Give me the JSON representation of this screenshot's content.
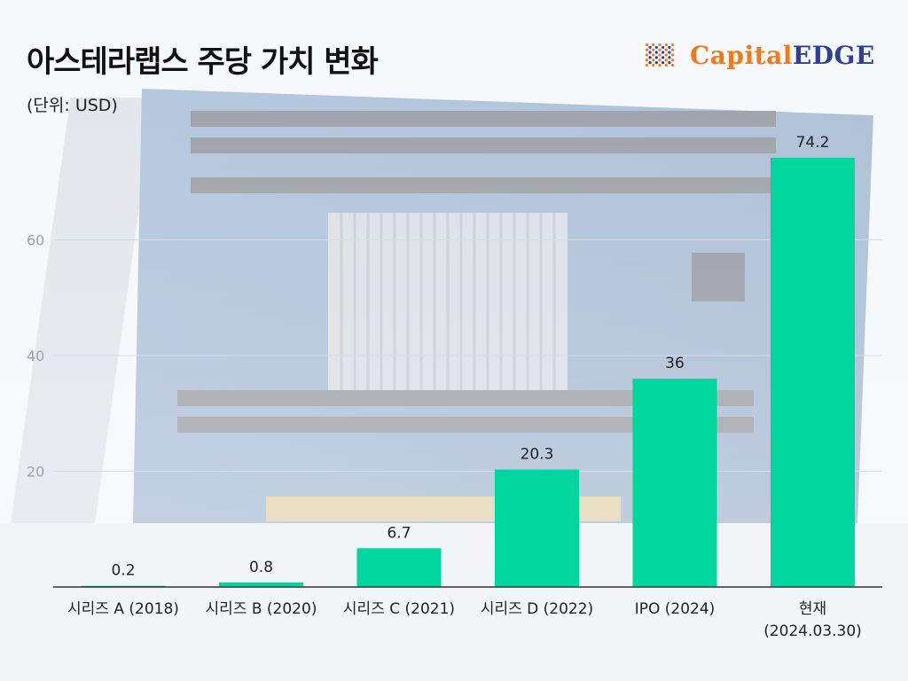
{
  "header": {
    "title": "아스테라랩스 주당 가치 변화",
    "unit": "(단위: USD)"
  },
  "logo": {
    "part1": "Capital",
    "part2": "EDGE",
    "colors": {
      "primary": "#f07a1a",
      "secondary": "#2d3f9a"
    }
  },
  "colors": {
    "bar": "#00d69e",
    "axis": "#333333",
    "grid": "#d6dde6",
    "tick": "#9aa3ad"
  },
  "chart_data": {
    "type": "bar",
    "title": "아스테라랩스 주당 가치 변화",
    "ylabel": "(단위: USD)",
    "xlabel": "",
    "categories": [
      [
        "시리즈 A (2018)"
      ],
      [
        "시리즈 B (2020)"
      ],
      [
        "시리즈 C (2021)"
      ],
      [
        "시리즈 D (2022)"
      ],
      [
        "IPO (2024)"
      ],
      [
        "현재",
        "(2024.03.30)"
      ]
    ],
    "values": [
      0.2,
      0.8,
      6.7,
      20.3,
      36,
      74.2
    ],
    "value_labels": [
      "0.2",
      "0.8",
      "6.7",
      "20.3",
      "36",
      "74.2"
    ],
    "yticks": [
      20,
      40,
      60
    ],
    "ylim": [
      0,
      80
    ],
    "grid": true
  }
}
